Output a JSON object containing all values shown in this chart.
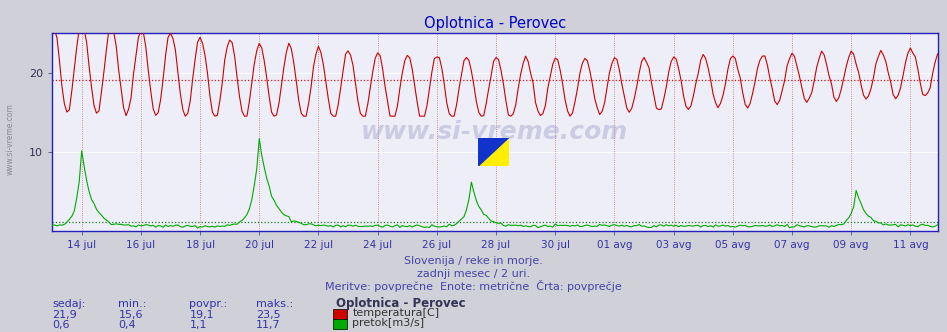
{
  "title": "Oplotnica - Perovec",
  "title_color": "#0000cc",
  "bg_color": "#d0d0d8",
  "plot_bg_color": "#eeeef8",
  "temp_color": "#cc0000",
  "flow_color": "#00aa00",
  "avg_temp_color": "#cc0000",
  "avg_flow_color": "#007700",
  "spine_color": "#2222bb",
  "temp_avg": 19.1,
  "flow_avg": 1.1,
  "temp_min": 15.6,
  "temp_max": 23.5,
  "flow_min": 0.4,
  "flow_max": 11.7,
  "temp_current": 21.9,
  "flow_current": 0.6,
  "ylim": [
    0,
    25
  ],
  "yticks": [
    10,
    20
  ],
  "footer_line1": "Slovenija / reke in morje.",
  "footer_line2": "zadnji mesec / 2 uri.",
  "footer_line3": "Meritve: povprečne  Enote: metrične  Črta: povprečje",
  "footer_color": "#4444aa",
  "watermark": "www.si-vreme.com",
  "n_points": 360,
  "xtick_labels": [
    "14 jul",
    "16 jul",
    "18 jul",
    "20 jul",
    "22 jul",
    "24 jul",
    "26 jul",
    "28 jul",
    "30 jul",
    "01 avg",
    "03 avg",
    "05 avg",
    "07 avg",
    "09 avg",
    "11 avg"
  ],
  "xtick_positions": [
    12,
    36,
    60,
    84,
    108,
    132,
    156,
    180,
    204,
    228,
    252,
    276,
    300,
    324,
    348
  ],
  "left_label": "www.si-vreme.com",
  "headers": [
    "sedaj:",
    "min.:",
    "povpr.:",
    "maks.:"
  ],
  "temp_vals": [
    "21,9",
    "15,6",
    "19,1",
    "23,5"
  ],
  "flow_vals": [
    "0,6",
    "0,4",
    "1,1",
    "11,7"
  ],
  "legend_station": "Oplotnica - Perovec",
  "legend_temp": "temperatura[C]",
  "legend_flow": "pretok[m3/s]"
}
